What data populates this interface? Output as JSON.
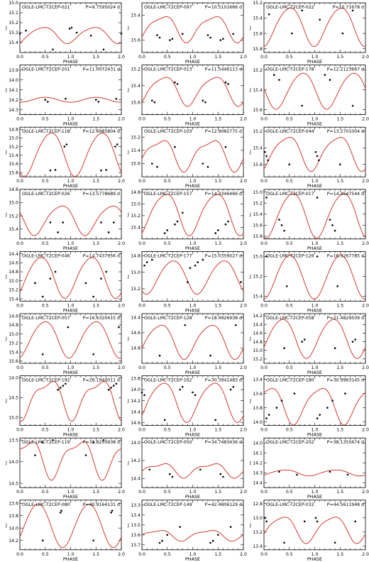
{
  "figure": {
    "xlabel": "PHASE",
    "ylabel": "J",
    "xticks": [
      "0.0",
      "0.5",
      "1.0",
      "1.5",
      "2.0"
    ],
    "curve_color": "#d03a32",
    "point_color": "#000000"
  },
  "chart_data": [
    {
      "type": "scatter",
      "title": "OGLE-LMC-T2CEP-021",
      "period": "P=9.7595024 d",
      "ylim": [
        15.5,
        15.0
      ],
      "yticks": [
        "15.0",
        "15.1",
        "15.2",
        "15.3",
        "15.4"
      ],
      "mean": 15.32,
      "amp": 0.08,
      "phase0": 0.95,
      "harm2": 0.15,
      "x": [
        0.0,
        0.12,
        0.65,
        0.98,
        1.02,
        1.12,
        1.4,
        1.65,
        2.0
      ],
      "y": [
        15.31,
        15.28,
        15.47,
        15.26,
        15.25,
        15.3,
        15.33,
        15.47,
        15.31
      ]
    },
    {
      "type": "scatter",
      "title": "OGLE-LMC-T2CEP-097",
      "period": "P=10.5101666 d",
      "ylim": [
        15.7,
        15.3
      ],
      "yticks": [
        "15.4",
        "15.6"
      ],
      "mean": 15.5,
      "amp": 0.1,
      "phase0": 0.9,
      "harm2": 0.25,
      "x": [
        0.3,
        0.35,
        0.55,
        0.6,
        0.8,
        1.3,
        1.35,
        1.55,
        1.6,
        1.8
      ],
      "y": [
        15.56,
        15.58,
        15.6,
        15.59,
        15.55,
        15.56,
        15.58,
        15.6,
        15.59,
        15.55
      ]
    },
    {
      "type": "scatter",
      "title": "OGLE-LMC-T2CEP-022",
      "period": "P=10.71678 d",
      "ylim": [
        15.85,
        15.2
      ],
      "yticks": [
        "15.2",
        "15.4",
        "15.6",
        "15.8"
      ],
      "mean": 15.5,
      "amp": 0.25,
      "phase0": 0.0,
      "harm2": 0.1,
      "x": [
        0.1,
        0.55,
        0.75,
        1.1,
        1.55,
        1.75
      ],
      "y": [
        15.35,
        15.6,
        15.3,
        15.42,
        15.6,
        15.3
      ]
    },
    {
      "type": "scatter",
      "title": "OGLE-LMC-T2CEP-201",
      "period": "P=11.0072431 d",
      "ylim": [
        14.35,
        13.85
      ],
      "yticks": [
        "13.9",
        "14.0",
        "14.1",
        "14.2",
        "14.3"
      ],
      "mean": 14.2,
      "amp": 0.025,
      "phase0": 0.0,
      "harm2": 0.0,
      "x": [
        0.5,
        0.55,
        0.9,
        1.5,
        1.55,
        1.9
      ],
      "y": [
        14.2,
        14.22,
        14.19,
        14.2,
        14.22,
        14.19
      ]
    },
    {
      "type": "scatter",
      "title": "OGLE-LMC-T2CEP-013",
      "period": "P=11.5446113 d",
      "ylim": [
        15.75,
        15.15
      ],
      "yticks": [
        "15.2",
        "15.4",
        "15.6"
      ],
      "mean": 15.45,
      "amp": 0.17,
      "phase0": 0.92,
      "harm2": 0.2,
      "x": [
        0.2,
        0.25,
        0.65,
        0.7,
        1.2,
        1.25,
        1.65,
        1.7
      ],
      "y": [
        15.58,
        15.6,
        15.36,
        15.38,
        15.58,
        15.6,
        15.36,
        15.38
      ]
    },
    {
      "type": "scatter",
      "title": "OGLE-LMC-T2CEP-178",
      "period": "P=12.2123667 d",
      "ylim": [
        15.65,
        15.15
      ],
      "yticks": [
        "15.2",
        "15.4",
        "15.6"
      ],
      "mean": 15.4,
      "amp": 0.18,
      "phase0": 0.25,
      "harm2": 0.1,
      "x": [
        0.2,
        0.3,
        0.75,
        1.2,
        1.3,
        1.75
      ],
      "y": [
        15.25,
        15.3,
        15.56,
        15.25,
        15.3,
        15.56
      ]
    },
    {
      "type": "scatter",
      "title": "OGLE-LMC-T2CEP-118",
      "period": "P=12.6985804 d",
      "ylim": [
        15.9,
        14.75
      ],
      "yticks": [
        "14.8",
        "15.0",
        "15.2",
        "15.4",
        "15.6",
        "15.8"
      ],
      "mean": 15.35,
      "amp": 0.5,
      "phase0": 0.1,
      "harm2": 0.1,
      "x": [
        0.6,
        0.7,
        0.88,
        0.92,
        1.6,
        1.7,
        1.88,
        1.92
      ],
      "y": [
        15.75,
        15.74,
        15.2,
        15.15,
        15.75,
        15.74,
        15.2,
        15.15
      ]
    },
    {
      "type": "scatter",
      "title": "OGLE-LMC-T2CEP-103",
      "period": "P=12.9082775 d",
      "ylim": [
        15.8,
        15.05
      ],
      "yticks": [
        "15.2",
        "15.4",
        "15.6"
      ],
      "mean": 15.45,
      "amp": 0.22,
      "phase0": 0.85,
      "harm2": 0.3,
      "x": [
        0.2,
        0.3,
        0.65,
        1.2,
        1.3,
        1.65
      ],
      "y": [
        15.6,
        15.65,
        15.35,
        15.6,
        15.65,
        15.35
      ]
    },
    {
      "type": "scatter",
      "title": "OGLE-LMC-T2CEP-044",
      "period": "P=13.2701004 d",
      "ylim": [
        15.75,
        15.15
      ],
      "yticks": [
        "15.2",
        "15.4",
        "15.6"
      ],
      "mean": 15.45,
      "amp": 0.2,
      "phase0": 0.95,
      "harm2": 0.2,
      "x": [
        0.02,
        0.05,
        0.08,
        0.5,
        1.02,
        1.05,
        1.08,
        1.5
      ],
      "y": [
        15.45,
        15.5,
        15.55,
        15.6,
        15.45,
        15.5,
        15.55,
        15.6
      ]
    },
    {
      "type": "scatter",
      "title": "OGLE-LMC-T2CEP-026",
      "period": "P=13.5778689 d",
      "ylim": [
        15.55,
        14.8
      ],
      "yticks": [
        "14.8",
        "15.0",
        "15.2",
        "15.4"
      ],
      "mean": 15.25,
      "amp": 0.22,
      "phase0": 0.3,
      "harm2": 0.15,
      "x": [
        0.6,
        0.75,
        0.85,
        1.6,
        1.75,
        1.85
      ],
      "y": [
        15.3,
        15.45,
        15.3,
        15.3,
        15.45,
        15.3
      ]
    },
    {
      "type": "scatter",
      "title": "OGLE-LMC-T2CEP-157",
      "period": "P=14.3346466 d",
      "ylim": [
        15.6,
        14.75
      ],
      "yticks": [
        "14.8",
        "15.0",
        "15.2",
        "15.4"
      ],
      "mean": 15.15,
      "amp": 0.35,
      "phase0": 0.95,
      "harm2": 0.15,
      "x": [
        0.45,
        0.5,
        0.65,
        0.7,
        0.8,
        1.45,
        1.5,
        1.65,
        1.7
      ],
      "y": [
        15.5,
        15.45,
        15.35,
        15.3,
        15.15,
        15.5,
        15.45,
        15.35,
        15.3
      ]
    },
    {
      "type": "scatter",
      "title": "OGLE-LMC-T2CEP-017",
      "period": "P=14.4547544 d",
      "ylim": [
        15.85,
        14.95
      ],
      "yticks": [
        "15.0",
        "15.2",
        "15.4",
        "15.6",
        "15.8"
      ],
      "mean": 15.4,
      "amp": 0.4,
      "phase0": 0.05,
      "harm2": 0.1,
      "x": [
        0.05,
        0.3,
        0.35,
        0.4,
        1.05,
        1.3,
        1.35,
        1.4
      ],
      "y": [
        15.1,
        15.5,
        15.6,
        15.7,
        15.1,
        15.5,
        15.6,
        15.7
      ]
    },
    {
      "type": "scatter",
      "title": "OGLE-LMC-T2CEP-046",
      "period": "P=14.7437956 d",
      "ylim": [
        15.45,
        14.35
      ],
      "yticks": [
        "14.4",
        "14.6",
        "14.8",
        "15.0",
        "15.2",
        "15.4"
      ],
      "mean": 14.9,
      "amp": 0.45,
      "phase0": 0.9,
      "harm2": 0.1,
      "x": [
        0.3,
        0.45,
        0.6,
        0.7,
        1.3,
        1.45,
        1.6,
        1.7
      ],
      "y": [
        15.05,
        15.35,
        14.95,
        14.8,
        15.05,
        15.35,
        14.95,
        14.8
      ]
    },
    {
      "type": "scatter",
      "title": "OGLE-LMC-T2CEP-177",
      "period": "P=15.0359027 d",
      "ylim": [
        15.35,
        14.75
      ],
      "yticks": [
        "14.8",
        "15.0",
        "15.2"
      ],
      "mean": 15.05,
      "amp": 0.2,
      "phase0": 0.1,
      "harm2": 0.1,
      "x": [
        0.05,
        0.1,
        0.2,
        0.9,
        0.95,
        1.05,
        1.1,
        1.2,
        1.95
      ],
      "y": [
        14.92,
        14.88,
        14.85,
        15.12,
        14.95,
        14.92,
        14.88,
        14.85,
        15.12
      ]
    },
    {
      "type": "scatter",
      "title": "OGLE-LMC-T2CEP-126",
      "period": "P=16.3267785 d",
      "ylim": [
        15.45,
        14.95
      ],
      "yticks": [
        "15.0",
        "15.2",
        "15.4"
      ],
      "mean": 15.2,
      "amp": 0.22,
      "phase0": 0.0,
      "harm2": 0.05,
      "x": [
        0.05,
        0.45,
        1.05,
        1.45
      ],
      "y": [
        15.0,
        15.3,
        15.0,
        15.3
      ]
    },
    {
      "type": "scatter",
      "title": "OGLE-LMC-T2CEP-057",
      "period": "P=16.6320415 d",
      "ylim": [
        15.65,
        14.55
      ],
      "yticks": [
        "14.6",
        "14.8",
        "15.0",
        "15.2",
        "15.4",
        "15.6"
      ],
      "mean": 15.1,
      "amp": 0.4,
      "phase0": 0.98,
      "harm2": 0.1,
      "x": [
        0.45,
        0.95,
        1.45,
        1.95
      ],
      "y": [
        15.45,
        14.85,
        15.45,
        14.85
      ]
    },
    {
      "type": "scatter",
      "title": "OGLE-LMC-T2CEP-128",
      "period": "P=18.4926938 d",
      "ylim": [
        15.0,
        14.35
      ],
      "yticks": [
        "14.4",
        "14.6",
        "14.8"
      ],
      "mean": 14.7,
      "amp": 0.22,
      "phase0": 0.85,
      "harm2": 0.15,
      "x": [
        0.35,
        0.85,
        1.35,
        1.85
      ],
      "y": [
        14.9,
        14.5,
        14.9,
        14.5
      ]
    },
    {
      "type": "scatter",
      "title": "OGLE-LMC-T2CEP-058",
      "period": "P=21.4829509 d",
      "ylim": [
        15.3,
        14.15
      ],
      "yticks": [
        "14.2",
        "14.4",
        "14.6",
        "14.8",
        "15.0",
        "15.2"
      ],
      "mean": 14.7,
      "amp": 0.45,
      "phase0": 0.85,
      "harm2": 0.1,
      "x": [
        0.4,
        0.75,
        0.8,
        1.4,
        1.75,
        1.8
      ],
      "y": [
        14.95,
        14.8,
        14.75,
        14.95,
        14.8,
        14.75
      ]
    },
    {
      "type": "scatter",
      "title": "OGLE-LMC-T2CEP-192",
      "period": "P=26.1940011 d",
      "ylim": [
        15.2,
        13.95
      ],
      "yticks": [
        "14.0",
        "14.5",
        "15.0"
      ],
      "mean": 14.5,
      "amp": 0.45,
      "phase0": 0.05,
      "harm2": 0.35,
      "x": [
        0.75,
        0.8,
        0.85,
        0.9,
        1.75,
        1.8,
        1.85,
        1.9
      ],
      "y": [
        14.3,
        14.25,
        14.2,
        14.15,
        14.3,
        14.25,
        14.2,
        14.15
      ]
    },
    {
      "type": "scatter",
      "title": "OGLE-LMC-T2CEP-162",
      "period": "P=30.3941483 d",
      "ylim": [
        14.65,
        13.75
      ],
      "yticks": [
        "13.8",
        "14.0",
        "14.2",
        "14.4",
        "14.6"
      ],
      "mean": 14.2,
      "amp": 0.35,
      "phase0": 0.9,
      "harm2": 0.15,
      "x": [
        0.0,
        0.05,
        0.45,
        0.75,
        0.8,
        1.0,
        1.05,
        1.45,
        1.75,
        1.8
      ],
      "y": [
        14.05,
        14.1,
        14.55,
        14.0,
        13.95,
        14.05,
        14.1,
        14.55,
        14.0,
        13.95
      ]
    },
    {
      "type": "scatter",
      "title": "OGLE-LMC-T2CEP-180",
      "period": "P=30.9963145 d",
      "ylim": [
        14.05,
        13.35
      ],
      "yticks": [
        "13.4",
        "13.6",
        "13.8",
        "14.0"
      ],
      "mean": 13.75,
      "amp": 0.25,
      "phase0": 0.6,
      "harm2": 0.2,
      "x": [
        0.05,
        0.1,
        0.25,
        0.35,
        0.6,
        1.05,
        1.1,
        1.25,
        1.35,
        1.6
      ],
      "y": [
        13.95,
        13.9,
        13.8,
        13.7,
        13.6,
        13.95,
        13.9,
        13.8,
        13.7,
        13.6
      ]
    },
    {
      "type": "scatter",
      "title": "OGLE-LMC-T2CEP-119",
      "period": "P=33.8250938 d",
      "ylim": [
        14.6,
        13.45
      ],
      "yticks": [
        "13.5",
        "14.0",
        "14.5"
      ],
      "mean": 13.9,
      "amp": 0.4,
      "phase0": 0.65,
      "harm2": 0.35,
      "x": [
        0.3,
        0.45,
        0.65,
        1.3,
        1.45,
        1.65
      ],
      "y": [
        13.85,
        13.55,
        13.5,
        13.85,
        13.55,
        13.5
      ]
    },
    {
      "type": "scatter",
      "title": "OGLE-LMC-T2CEP-050",
      "period": "P=34.7483436 d",
      "ylim": [
        14.5,
        13.95
      ],
      "yticks": [
        "14.0",
        "14.2",
        "14.4"
      ],
      "mean": 14.3,
      "amp": 0.07,
      "phase0": 0.85,
      "harm2": 0.4,
      "x": [
        0.15,
        0.55,
        0.6,
        1.15,
        1.55,
        1.6
      ],
      "y": [
        14.3,
        14.35,
        14.38,
        14.3,
        14.35,
        14.38
      ]
    },
    {
      "type": "scatter",
      "title": "OGLE-LMC-T2CEP-202",
      "period": "P=38.1355674 d",
      "ylim": [
        14.45,
        13.95
      ],
      "yticks": [
        "14.0",
        "14.1",
        "14.2",
        "14.3",
        "14.4"
      ],
      "mean": 14.3,
      "amp": 0.03,
      "phase0": 0.9,
      "harm2": 0.1,
      "x": [
        0.3,
        0.65,
        1.3,
        1.65
      ],
      "y": [
        14.29,
        14.32,
        14.29,
        14.32
      ]
    },
    {
      "type": "scatter",
      "title": "OGLE-LMC-T2CEP-080",
      "period": "P=40.9164131 d",
      "ylim": [
        14.35,
        13.55
      ],
      "yticks": [
        "13.6",
        "13.8",
        "14.0",
        "14.2"
      ],
      "mean": 13.95,
      "amp": 0.35,
      "phase0": 0.85,
      "harm2": 0.05,
      "x": [
        0.45,
        0.8,
        0.82,
        1.45,
        1.8,
        1.82
      ],
      "y": [
        14.2,
        13.75,
        13.72,
        14.2,
        13.75,
        13.72
      ]
    },
    {
      "type": "scatter",
      "title": "OGLE-LMC-T2CEP-149",
      "period": "P=42.4806129 d",
      "ylim": [
        13.75,
        13.25
      ],
      "yticks": [
        "13.3",
        "13.4",
        "13.5",
        "13.6",
        "13.7"
      ],
      "mean": 13.6,
      "amp": 0.05,
      "phase0": 0.8,
      "harm2": 0.3,
      "x": [
        0.35,
        0.4,
        0.5,
        0.75,
        1.35,
        1.4,
        1.5,
        1.75
      ],
      "y": [
        13.68,
        13.66,
        13.6,
        13.52,
        13.68,
        13.66,
        13.6,
        13.52
      ]
    },
    {
      "type": "scatter",
      "title": "OGLE-LMC-T2CEP-032",
      "period": "P=44.5611948 d",
      "ylim": [
        13.45,
        12.75
      ],
      "yticks": [
        "12.8",
        "13.0",
        "13.2",
        "13.4"
      ],
      "mean": 13.15,
      "amp": 0.18,
      "phase0": 0.85,
      "harm2": 0.2,
      "x": [
        0.02,
        0.05,
        0.4,
        0.8,
        1.02,
        1.05,
        1.4,
        1.8
      ],
      "y": [
        13.0,
        13.05,
        13.35,
        13.05,
        13.0,
        13.05,
        13.35,
        13.05
      ]
    }
  ]
}
